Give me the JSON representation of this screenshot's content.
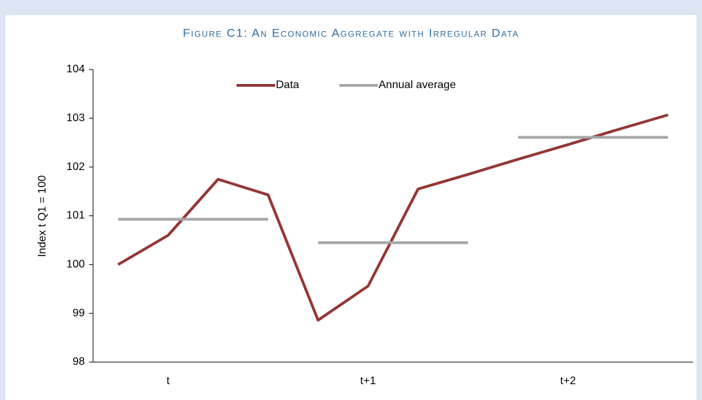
{
  "chart_data": {
    "type": "line",
    "title": "Figure C1: An Economic Aggregate with Irregular Data",
    "y_label": "Index t Q1 = 100",
    "categories": [
      null,
      "t",
      null,
      null,
      null,
      "t+1",
      null,
      null,
      null,
      "t+2",
      null,
      null
    ],
    "series": [
      {
        "name": "Data",
        "color": "#943634",
        "values": [
          100,
          100.6,
          101.75,
          101.43,
          98.86,
          99.56,
          101.55,
          101.85,
          102.16,
          102.46,
          102.77,
          103.07
        ]
      },
      {
        "name": "Annual average",
        "color": "#a6a6a6",
        "values": [
          100.93,
          100.93,
          100.93,
          100.93,
          100.45,
          100.45,
          100.45,
          100.45,
          102.61,
          102.61,
          102.61,
          102.61
        ]
      }
    ],
    "ylim": [
      98,
      104
    ],
    "yticks": [
      98,
      99,
      100,
      101,
      102,
      103,
      104
    ],
    "legend": "top",
    "grid": false
  }
}
